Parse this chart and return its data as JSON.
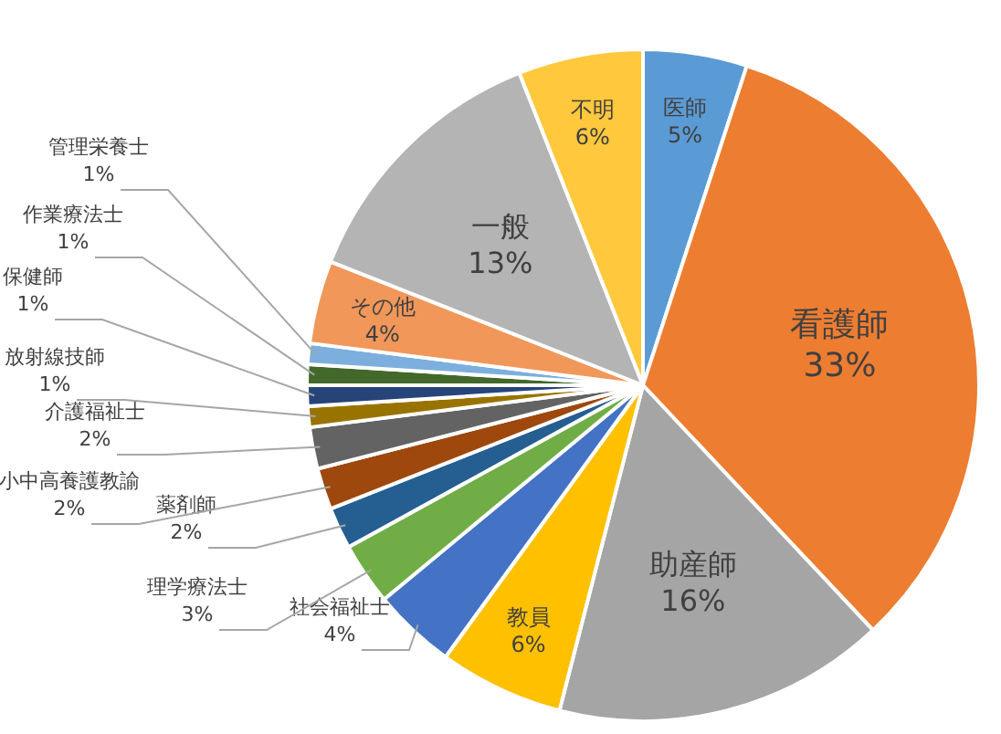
{
  "chart_data": {
    "type": "pie",
    "categories": [
      "医師",
      "看護師",
      "助産師",
      "教員",
      "社会福祉士",
      "理学療法士",
      "薬剤師",
      "小中高養護教諭",
      "介護福祉士",
      "放射線技師",
      "保健師",
      "作業療法士",
      "管理栄養士",
      "その他",
      "一般",
      "不明"
    ],
    "values": [
      5,
      33,
      16,
      6,
      4,
      3,
      2,
      2,
      2,
      1,
      1,
      1,
      1,
      4,
      13,
      6
    ],
    "value_labels": [
      "5%",
      "33%",
      "16%",
      "6%",
      "4%",
      "3%",
      "2%",
      "2%",
      "2%",
      "1%",
      "1%",
      "1%",
      "1%",
      "4%",
      "13%",
      "6%"
    ],
    "colors": [
      "#5b9bd5",
      "#ed7d31",
      "#a5a5a5",
      "#ffc000",
      "#4472c4",
      "#70ad47",
      "#255e91",
      "#9e480e",
      "#636363",
      "#997300",
      "#264478",
      "#43682b",
      "#7cafdd",
      "#f1975a",
      "#b4b4b4",
      "#ffc83d"
    ]
  }
}
